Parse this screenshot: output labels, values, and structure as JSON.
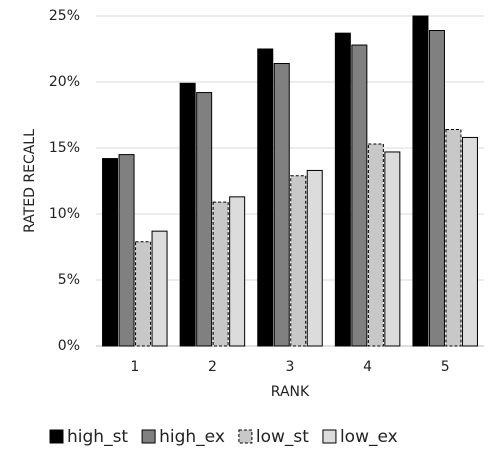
{
  "chart_data": {
    "type": "bar",
    "x_label": "RANK",
    "y_label": "RATED RECALL",
    "categories": [
      "1",
      "2",
      "3",
      "4",
      "5"
    ],
    "series": [
      {
        "name": "high_st",
        "color": "#000000",
        "border_style": "solid",
        "values": [
          14.2,
          19.9,
          22.5,
          23.7,
          25.0
        ]
      },
      {
        "name": "high_ex",
        "color": "#808080",
        "border_style": "solid",
        "values": [
          14.5,
          19.2,
          21.4,
          22.8,
          23.9
        ]
      },
      {
        "name": "low_st",
        "color": "#c8c8c8",
        "border_style": "dashed",
        "values": [
          7.9,
          10.9,
          12.9,
          15.3,
          16.4
        ]
      },
      {
        "name": "low_ex",
        "color": "#dcdcdc",
        "border_style": "solid",
        "values": [
          8.7,
          11.3,
          13.3,
          14.7,
          15.8
        ]
      }
    ],
    "ylim": [
      0,
      25
    ],
    "yticks": [
      {
        "value": 0,
        "label": "0%"
      },
      {
        "value": 5,
        "label": "5%"
      },
      {
        "value": 10,
        "label": "10%"
      },
      {
        "value": 15,
        "label": "15%"
      },
      {
        "value": 20,
        "label": "20%"
      },
      {
        "value": 25,
        "label": "25%"
      }
    ],
    "grid": true,
    "legend": "bottom"
  }
}
